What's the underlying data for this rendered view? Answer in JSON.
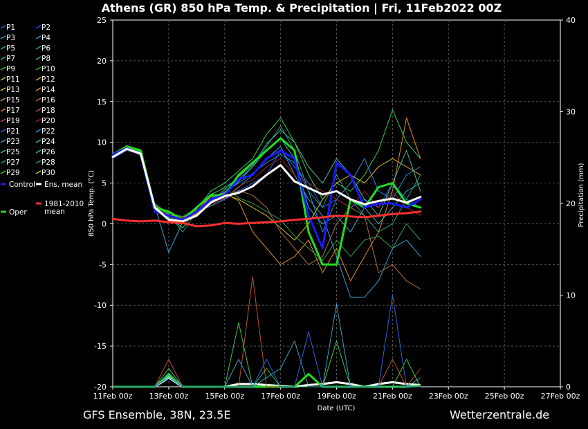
{
  "title": "Athens  (GR)  850 hPa Temp. & Precipitation | Fri, 11Feb2022 00Z",
  "footer": {
    "left": "GFS Ensemble, 38N, 23.5E",
    "right": "Wetterzentrale.de"
  },
  "chart_data": {
    "type": "line",
    "xlabel": "Date (UTC)",
    "ylabel": "850 hPa Temp. (°C)",
    "y2label": "Precipitation (mm)",
    "ylim": [
      -20,
      25
    ],
    "y2lim": [
      0,
      40
    ],
    "xlim": [
      0,
      384
    ],
    "yticks": [
      "25",
      "20",
      "15",
      "10",
      "5",
      "0",
      "-5",
      "-10",
      "-15",
      "-20"
    ],
    "y2ticks": [
      "40",
      "30",
      "20",
      "10",
      "0"
    ],
    "xticks": [
      "11Feb 00z",
      "13Feb 00z",
      "15Feb 00z",
      "17Feb 00z",
      "19Feb 00z",
      "21Feb 00z",
      "23Feb 00z",
      "25Feb 00z",
      "27Feb 00z"
    ],
    "grid": true,
    "legend_position": "left",
    "legend": [
      {
        "label": "P1",
        "color": "#2f5bff"
      },
      {
        "label": "P2",
        "color": "#1f3fff"
      },
      {
        "label": "P3",
        "color": "#3a9fd0"
      },
      {
        "label": "P4",
        "color": "#2a8fc0"
      },
      {
        "label": "P5",
        "color": "#30b0b0"
      },
      {
        "label": "P6",
        "color": "#20a080"
      },
      {
        "label": "P7",
        "color": "#20c090"
      },
      {
        "label": "P8",
        "color": "#40b060"
      },
      {
        "label": "P9",
        "color": "#30d050"
      },
      {
        "label": "P10",
        "color": "#22b822"
      },
      {
        "label": "P11",
        "color": "#c0d040"
      },
      {
        "label": "P12",
        "color": "#d0b030"
      },
      {
        "label": "P13",
        "color": "#e0c020"
      },
      {
        "label": "P14",
        "color": "#e09020"
      },
      {
        "label": "P15",
        "color": "#c09060"
      },
      {
        "label": "P16",
        "color": "#b07040"
      },
      {
        "label": "P17",
        "color": "#e08040"
      },
      {
        "label": "P18",
        "color": "#c05030"
      },
      {
        "label": "P19",
        "color": "#d04040"
      },
      {
        "label": "P20",
        "color": "#a02020"
      },
      {
        "label": "P21",
        "color": "#3060e0"
      },
      {
        "label": "P22",
        "color": "#2090e0"
      },
      {
        "label": "P23",
        "color": "#40a0c0"
      },
      {
        "label": "P24",
        "color": "#30b0c0"
      },
      {
        "label": "P25",
        "color": "#40c0a0"
      },
      {
        "label": "P26",
        "color": "#30c080"
      },
      {
        "label": "P27",
        "color": "#20b070"
      },
      {
        "label": "P28",
        "color": "#30a050"
      },
      {
        "label": "P29",
        "color": "#50c030"
      },
      {
        "label": "P30",
        "color": "#d0c020"
      },
      {
        "label": "Control",
        "color": "#1a1aff"
      },
      {
        "label": "Ens. mean",
        "color": "#ffffff"
      },
      {
        "label": "1981-2010 mean",
        "color": "#ff3030"
      },
      {
        "label": "Oper",
        "color": "#22dd22"
      }
    ],
    "x": [
      0,
      12,
      24,
      36,
      48,
      60,
      72,
      84,
      96,
      108,
      120,
      132,
      144,
      156,
      168,
      180,
      192,
      204,
      216,
      228,
      240,
      252,
      264,
      276,
      288,
      300,
      312,
      324,
      336,
      348,
      360,
      372,
      384
    ],
    "series": [
      {
        "name": "Oper",
        "color": "#22dd22",
        "width": 3,
        "values": [
          8.5,
          9.5,
          9,
          2,
          1.5,
          0.5,
          2,
          3.5,
          3.5,
          6,
          7.5,
          9,
          10.5,
          9,
          -1,
          -5,
          -5,
          3,
          2,
          4.5,
          5,
          2.5,
          2,
          null,
          null,
          null,
          null,
          null,
          null,
          null,
          null,
          null,
          null
        ]
      },
      {
        "name": "Control",
        "color": "#1a1aff",
        "width": 3,
        "values": [
          8.5,
          9.3,
          8.5,
          1.5,
          1,
          0.5,
          1.5,
          3,
          3.5,
          5.5,
          6,
          8,
          9,
          8,
          1,
          -3,
          7.5,
          6,
          2,
          2.5,
          2.5,
          2,
          3,
          null,
          null,
          null,
          null,
          null,
          null,
          null,
          null,
          null,
          null
        ]
      },
      {
        "name": "Ens. mean",
        "color": "#ffffff",
        "width": 3,
        "values": [
          8.2,
          9.2,
          8.6,
          2,
          0.5,
          0.3,
          1,
          2.6,
          3.4,
          3.8,
          4.6,
          6,
          7.2,
          5.2,
          4.4,
          3.6,
          4,
          3,
          2.4,
          2.8,
          3.1,
          2.6,
          3.3,
          null,
          null,
          null,
          null,
          null,
          null,
          null,
          null,
          null,
          null
        ]
      },
      {
        "name": "1981-2010 mean",
        "color": "#ff3030",
        "width": 3,
        "values": [
          0.6,
          0.4,
          0.3,
          0.4,
          0.2,
          0.1,
          -0.3,
          -0.2,
          0.1,
          0,
          0.1,
          0.2,
          0.3,
          0.5,
          0.6,
          0.8,
          1.0,
          0.9,
          0.8,
          1.0,
          1.2,
          1.3,
          1.5,
          null,
          null,
          null,
          null,
          null,
          null,
          null,
          null,
          null,
          null
        ]
      },
      {
        "name": "P1",
        "color": "#2f5bff",
        "width": 1,
        "values": [
          8,
          9,
          8.5,
          2,
          1,
          0.5,
          1.5,
          3,
          3,
          4,
          5,
          6,
          9,
          7,
          5,
          2,
          3,
          2,
          3,
          2,
          5,
          3,
          2,
          null,
          null,
          null,
          null,
          null,
          null,
          null,
          null,
          null,
          null
        ]
      },
      {
        "name": "P3",
        "color": "#3a9fd0",
        "width": 1,
        "values": [
          8.3,
          9.3,
          8.7,
          2.2,
          -3.5,
          0.2,
          1.4,
          2.2,
          3,
          4.5,
          6,
          8,
          9.5,
          6,
          3,
          1,
          -4,
          -9,
          -9,
          -7,
          -3,
          -2,
          -4,
          null,
          null,
          null,
          null,
          null,
          null,
          null,
          null,
          null,
          null
        ]
      },
      {
        "name": "P6",
        "color": "#20a080",
        "width": 1,
        "values": [
          8.2,
          9.1,
          8.8,
          2.5,
          1.2,
          -1,
          1.5,
          3.5,
          4.5,
          5.5,
          7,
          9.5,
          12,
          9,
          4,
          2,
          6,
          3,
          1,
          -1,
          0,
          3,
          6,
          null,
          null,
          null,
          null,
          null,
          null,
          null,
          null,
          null,
          null
        ]
      },
      {
        "name": "P9",
        "color": "#30d050",
        "width": 1,
        "values": [
          8.4,
          9.4,
          8.9,
          2.1,
          0.8,
          -0.5,
          1.8,
          4,
          5,
          6.5,
          8,
          11,
          13,
          10,
          6,
          3,
          5,
          4,
          6,
          9,
          14,
          10,
          8,
          null,
          null,
          null,
          null,
          null,
          null,
          null,
          null,
          null,
          null
        ]
      },
      {
        "name": "P13",
        "color": "#e0c020",
        "width": 1,
        "values": [
          8.1,
          9.2,
          8.4,
          1.8,
          0.6,
          0.4,
          1.2,
          2.5,
          3.6,
          3,
          2,
          1,
          -0.5,
          -2,
          0,
          3,
          5,
          6,
          5,
          7,
          8,
          7,
          6,
          null,
          null,
          null,
          null,
          null,
          null,
          null,
          null,
          null,
          null
        ]
      },
      {
        "name": "P14",
        "color": "#e09020",
        "width": 1,
        "values": [
          8.3,
          9.3,
          8.6,
          2.3,
          1.1,
          0.8,
          1.6,
          3.3,
          3.8,
          2.8,
          -1,
          -3,
          -5,
          -4,
          -2,
          -6,
          -3,
          -7,
          -4,
          -1,
          4,
          13,
          8,
          null,
          null,
          null,
          null,
          null,
          null,
          null,
          null,
          null,
          null
        ]
      },
      {
        "name": "P16",
        "color": "#b07040",
        "width": 1,
        "values": [
          8.2,
          9.1,
          8.5,
          2,
          0.9,
          0.3,
          1.3,
          2.9,
          3.2,
          4.1,
          3.5,
          2,
          -1,
          -3,
          -5,
          -4,
          0,
          2,
          1,
          -6,
          -5,
          -7,
          -8,
          null,
          null,
          null,
          null,
          null,
          null,
          null,
          null,
          null,
          null
        ]
      },
      {
        "name": "P22",
        "color": "#2090e0",
        "width": 1,
        "values": [
          8.3,
          9.2,
          8.7,
          1.9,
          1,
          0.6,
          1.4,
          3.1,
          3.9,
          5,
          6.2,
          7.5,
          8.5,
          7.5,
          4,
          -1,
          3,
          5,
          8,
          4,
          3,
          6,
          7,
          null,
          null,
          null,
          null,
          null,
          null,
          null,
          null,
          null,
          null
        ]
      },
      {
        "name": "P25",
        "color": "#40c0a0",
        "width": 1,
        "values": [
          8.2,
          9.3,
          8.6,
          2.1,
          0.7,
          0.2,
          1.1,
          2.7,
          4.2,
          5.8,
          7.2,
          9.8,
          11.5,
          10,
          7,
          5,
          8,
          6,
          3,
          1,
          5,
          9,
          4,
          null,
          null,
          null,
          null,
          null,
          null,
          null,
          null,
          null,
          null
        ]
      },
      {
        "name": "P28",
        "color": "#30a050",
        "width": 1,
        "values": [
          8.4,
          9.4,
          8.8,
          2.4,
          1.3,
          0.9,
          1.9,
          3.6,
          4.4,
          3.2,
          2.5,
          1.5,
          0.5,
          -1.5,
          -3,
          -4.5,
          -2,
          -4,
          -2,
          -1.5,
          -3,
          0,
          -2,
          null,
          null,
          null,
          null,
          null,
          null,
          null,
          null,
          null,
          null
        ]
      },
      {
        "name": "P20",
        "color": "#a02020",
        "width": 1,
        "values": [
          8.1,
          9.1,
          8.4,
          1.7,
          0.5,
          0.1,
          1,
          2.4,
          3.1,
          4.6,
          5.4,
          7,
          8,
          6,
          5,
          4,
          3,
          2,
          4,
          2,
          4,
          2,
          1,
          null,
          null,
          null,
          null,
          null,
          null,
          null,
          null,
          null,
          null
        ]
      },
      {
        "name": "P24",
        "color": "#30b0c0",
        "width": 1,
        "values": [
          8.3,
          9.2,
          8.5,
          2,
          0.9,
          0.5,
          1.5,
          3,
          3.7,
          5.2,
          7,
          9,
          10.5,
          8,
          2,
          0,
          1,
          -1,
          2,
          0,
          2,
          4,
          5,
          null,
          null,
          null,
          null,
          null,
          null,
          null,
          null,
          null,
          null
        ]
      }
    ],
    "precip_series": [
      {
        "name": "Ens. mean",
        "color": "#ffffff",
        "width": 3,
        "values": [
          0,
          0,
          0,
          0,
          1.0,
          0,
          0,
          0,
          0,
          0.3,
          0.3,
          0.2,
          0.1,
          0,
          0.2,
          0.3,
          0.5,
          0.3,
          0,
          0.3,
          0.5,
          0.3,
          0.2,
          null,
          null,
          null,
          null,
          null,
          null,
          null,
          null,
          null,
          null
        ]
      },
      {
        "name": "Oper",
        "color": "#22dd22",
        "width": 3,
        "values": [
          0,
          0,
          0,
          0,
          1.3,
          0,
          0,
          0,
          0,
          0,
          0,
          0,
          0,
          0,
          1.4,
          0,
          0,
          0,
          0,
          0,
          0,
          0,
          0.1,
          null,
          null,
          null,
          null,
          null,
          null,
          null,
          null,
          null,
          null
        ]
      },
      {
        "name": "P18",
        "color": "#c05030",
        "width": 1,
        "values": [
          0,
          0,
          0,
          0,
          3,
          0,
          0,
          0,
          0,
          0,
          12,
          0,
          0,
          0,
          0,
          0,
          0,
          0,
          0,
          0,
          3,
          0,
          2,
          null,
          null,
          null,
          null,
          null,
          null,
          null,
          null,
          null,
          null
        ]
      },
      {
        "name": "P9",
        "color": "#30d050",
        "width": 1,
        "values": [
          0,
          0,
          0,
          0,
          2,
          0,
          0,
          0,
          0,
          7,
          0,
          2,
          0,
          0,
          0,
          0,
          5,
          0,
          0,
          0,
          0,
          3,
          0,
          null,
          null,
          null,
          null,
          null,
          null,
          null,
          null,
          null,
          null
        ]
      },
      {
        "name": "P23",
        "color": "#40a0c0",
        "width": 1,
        "values": [
          0,
          0,
          0,
          0,
          1.5,
          0,
          0,
          0,
          0,
          3,
          0,
          1,
          2,
          5,
          0,
          0,
          9,
          0,
          0,
          0,
          0,
          0,
          1,
          null,
          null,
          null,
          null,
          null,
          null,
          null,
          null,
          null,
          null
        ]
      },
      {
        "name": "P21",
        "color": "#3060e0",
        "width": 1,
        "values": [
          0,
          0,
          0,
          0,
          1,
          0,
          0,
          0,
          0,
          0,
          0,
          3,
          0,
          0,
          6,
          0,
          0,
          0,
          0,
          0,
          10,
          0,
          0,
          null,
          null,
          null,
          null,
          null,
          null,
          null,
          null,
          null,
          null
        ]
      }
    ]
  }
}
